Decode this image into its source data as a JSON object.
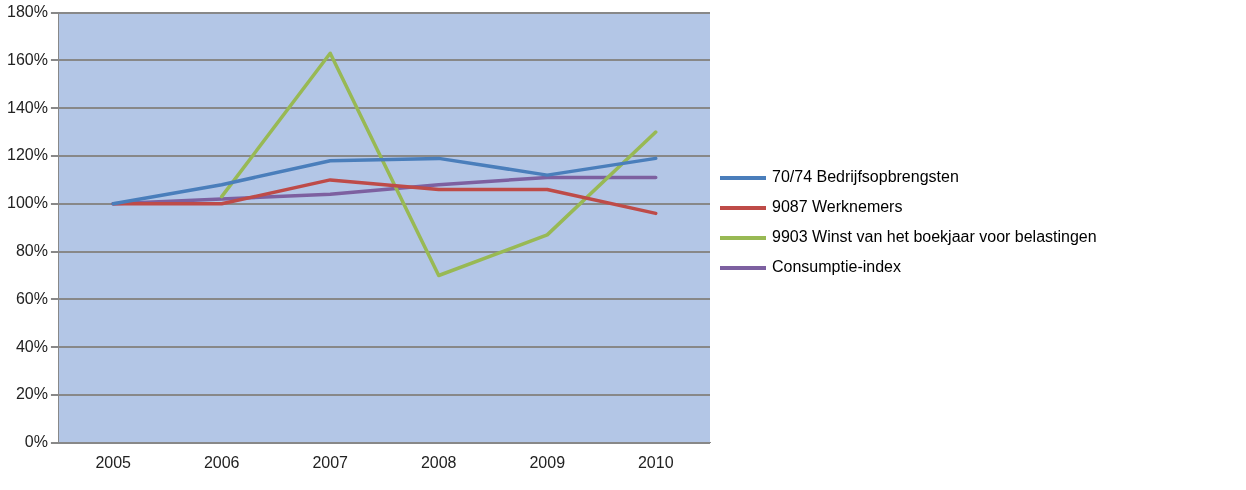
{
  "chart_data": {
    "type": "line",
    "categories": [
      "2005",
      "2006",
      "2007",
      "2008",
      "2009",
      "2010"
    ],
    "series": [
      {
        "name": "70/74 Bedrijfsopbrengsten",
        "color": "#4a7ebb",
        "values": [
          100,
          108,
          118,
          119,
          112,
          119
        ]
      },
      {
        "name": "9087 Werknemers",
        "color": "#be4b48",
        "values": [
          100,
          100,
          110,
          106,
          106,
          96
        ]
      },
      {
        "name": "9903 Winst van het boekjaar voor belastingen",
        "color": "#98b954",
        "values": [
          null,
          103,
          163,
          70,
          87,
          130
        ]
      },
      {
        "name": "Consumptie-index",
        "color": "#7d60a0",
        "values": [
          100,
          102,
          104,
          108,
          111,
          111
        ]
      }
    ],
    "ylim": [
      0,
      180
    ],
    "yticks": [
      {
        "value": 0,
        "label": "0%"
      },
      {
        "value": 20,
        "label": "20%"
      },
      {
        "value": 40,
        "label": "40%"
      },
      {
        "value": 60,
        "label": "60%"
      },
      {
        "value": 80,
        "label": "80%"
      },
      {
        "value": 100,
        "label": "100%"
      },
      {
        "value": 120,
        "label": "120%"
      },
      {
        "value": 140,
        "label": "140%"
      },
      {
        "value": 160,
        "label": "160%"
      },
      {
        "value": 180,
        "label": "180%"
      }
    ],
    "grid": "y",
    "legend": "right",
    "marker": "none",
    "line_style": "solid"
  }
}
